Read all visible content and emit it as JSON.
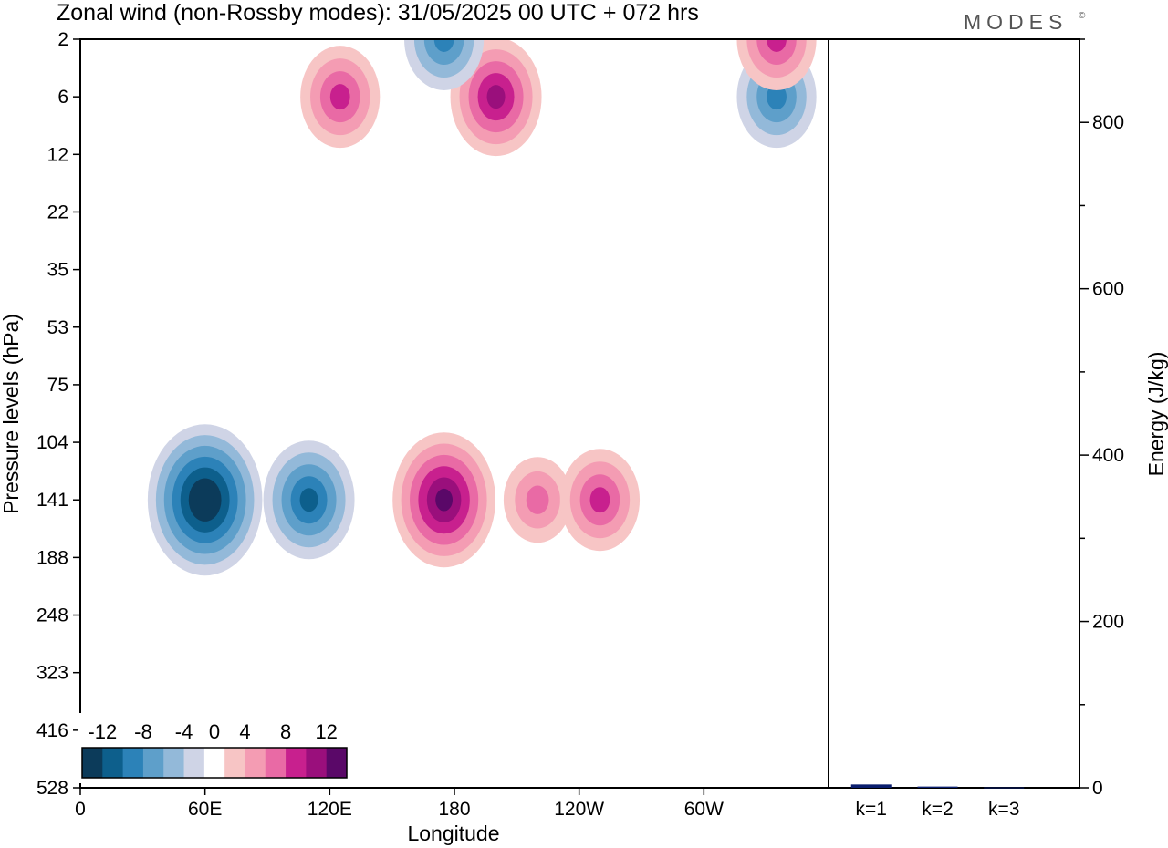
{
  "header": {
    "title": "Zonal wind (non-Rossby modes):  31/05/2025  00 UTC  + 072 hrs",
    "brand": "MODES",
    "brand_mark": "©"
  },
  "chart_data": [
    {
      "type": "heatmap",
      "title": "Zonal wind (non-Rossby modes):  31/05/2025  00 UTC  + 072 hrs",
      "xlabel": "Longitude",
      "ylabel": "Pressure levels (hPa)",
      "x_ticks": [
        "0",
        "60E",
        "120E",
        "180",
        "120W",
        "60W"
      ],
      "x_tick_degrees": [
        0,
        60,
        120,
        180,
        240,
        300
      ],
      "xlim": [
        0,
        360
      ],
      "y_ticks": [
        "2",
        "6",
        "12",
        "22",
        "35",
        "53",
        "75",
        "104",
        "141",
        "188",
        "248",
        "323",
        "416",
        "528"
      ],
      "colorbar": {
        "labels": [
          "-12",
          "-8",
          "-4",
          "0",
          "4",
          "8",
          "12"
        ],
        "levels": [
          -14,
          -12,
          -10,
          -8,
          -6,
          -4,
          -2,
          2,
          4,
          6,
          8,
          10,
          12,
          14
        ],
        "colors": [
          "#0c3b5a",
          "#0d5f8c",
          "#2c82b8",
          "#5e9fca",
          "#93b9d9",
          "#cfd4e6",
          "#ffffff",
          "#f7c5c5",
          "#f49cb3",
          "#e96aa5",
          "#c8208e",
          "#9a0f7c",
          "#5a0868"
        ]
      },
      "features": [
        {
          "sign": "negative",
          "peak": -14,
          "lon": 60,
          "level": "141"
        },
        {
          "sign": "negative",
          "peak": -10,
          "lon": 110,
          "level": "141"
        },
        {
          "sign": "positive",
          "peak": 12,
          "lon": 175,
          "level": "141"
        },
        {
          "sign": "positive",
          "peak": 6,
          "lon": 220,
          "level": "141"
        },
        {
          "sign": "positive",
          "peak": 8,
          "lon": 250,
          "level": "141"
        },
        {
          "sign": "positive",
          "peak": 10,
          "lon": 200,
          "level": "6"
        },
        {
          "sign": "positive",
          "peak": 8,
          "lon": 125,
          "level": "6"
        },
        {
          "sign": "negative",
          "peak": -8,
          "lon": 175,
          "level": "2"
        },
        {
          "sign": "negative",
          "peak": -8,
          "lon": 335,
          "level": "6"
        },
        {
          "sign": "positive",
          "peak": 8,
          "lon": 335,
          "level": "2"
        }
      ]
    },
    {
      "type": "bar",
      "categories": [
        "k=1",
        "k=2",
        "k=3"
      ],
      "values": [
        4,
        1.5,
        0.5
      ],
      "ylabel": "Energy (J/kg)",
      "y_ticks": [
        "0",
        "200",
        "400",
        "600",
        "800"
      ],
      "ylim": [
        0,
        900
      ],
      "bar_color": "#0a1e6e"
    }
  ]
}
